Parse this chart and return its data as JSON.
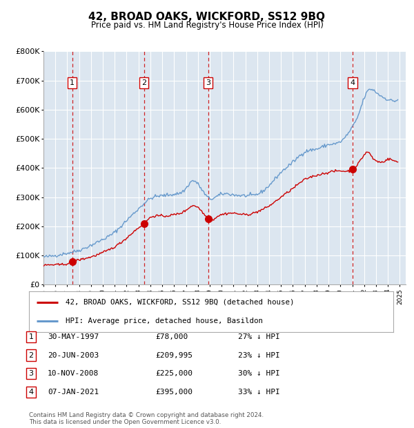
{
  "title": "42, BROAD OAKS, WICKFORD, SS12 9BQ",
  "subtitle": "Price paid vs. HM Land Registry's House Price Index (HPI)",
  "hpi_color": "#6699cc",
  "price_color": "#cc0000",
  "plot_bg": "#dce6f0",
  "grid_color": "#ffffff",
  "vline_color": "#cc0000",
  "sale_points": [
    {
      "date_num": 1997.42,
      "price": 78000,
      "label": "1"
    },
    {
      "date_num": 2003.47,
      "price": 209995,
      "label": "2"
    },
    {
      "date_num": 2008.86,
      "price": 225000,
      "label": "3"
    },
    {
      "date_num": 2021.02,
      "price": 395000,
      "label": "4"
    }
  ],
  "legend_entries": [
    "42, BROAD OAKS, WICKFORD, SS12 9BQ (detached house)",
    "HPI: Average price, detached house, Basildon"
  ],
  "table_rows": [
    {
      "num": "1",
      "date": "30-MAY-1997",
      "price": "£78,000",
      "hpi": "27% ↓ HPI"
    },
    {
      "num": "2",
      "date": "20-JUN-2003",
      "price": "£209,995",
      "hpi": "23% ↓ HPI"
    },
    {
      "num": "3",
      "date": "10-NOV-2008",
      "price": "£225,000",
      "hpi": "30% ↓ HPI"
    },
    {
      "num": "4",
      "date": "07-JAN-2021",
      "price": "£395,000",
      "hpi": "33% ↓ HPI"
    }
  ],
  "footnote1": "Contains HM Land Registry data © Crown copyright and database right 2024.",
  "footnote2": "This data is licensed under the Open Government Licence v3.0.",
  "ylim": [
    0,
    800000
  ],
  "yticks": [
    0,
    100000,
    200000,
    300000,
    400000,
    500000,
    600000,
    700000,
    800000
  ],
  "xlim_start": 1995.0,
  "xlim_end": 2025.5,
  "hpi_control": [
    [
      1995.0,
      95000
    ],
    [
      1996.0,
      100000
    ],
    [
      1997.0,
      108000
    ],
    [
      1998.0,
      118000
    ],
    [
      1999.0,
      135000
    ],
    [
      2000.0,
      155000
    ],
    [
      2001.0,
      180000
    ],
    [
      2002.0,
      220000
    ],
    [
      2003.0,
      260000
    ],
    [
      2004.0,
      295000
    ],
    [
      2005.0,
      305000
    ],
    [
      2006.0,
      310000
    ],
    [
      2007.0,
      330000
    ],
    [
      2007.5,
      355000
    ],
    [
      2008.0,
      345000
    ],
    [
      2009.0,
      295000
    ],
    [
      2009.5,
      300000
    ],
    [
      2010.0,
      310000
    ],
    [
      2011.0,
      308000
    ],
    [
      2012.0,
      305000
    ],
    [
      2013.0,
      310000
    ],
    [
      2014.0,
      340000
    ],
    [
      2015.0,
      385000
    ],
    [
      2016.0,
      420000
    ],
    [
      2017.0,
      455000
    ],
    [
      2018.0,
      465000
    ],
    [
      2019.0,
      480000
    ],
    [
      2020.0,
      490000
    ],
    [
      2021.0,
      540000
    ],
    [
      2021.5,
      580000
    ],
    [
      2022.0,
      640000
    ],
    [
      2022.5,
      670000
    ],
    [
      2023.0,
      660000
    ],
    [
      2023.5,
      645000
    ],
    [
      2024.0,
      635000
    ],
    [
      2024.5,
      630000
    ],
    [
      2024.9,
      635000
    ]
  ],
  "price_control": [
    [
      1995.0,
      65000
    ],
    [
      1996.0,
      68000
    ],
    [
      1997.0,
      72000
    ],
    [
      1997.42,
      78000
    ],
    [
      1998.0,
      85000
    ],
    [
      1999.0,
      95000
    ],
    [
      2000.0,
      110000
    ],
    [
      2001.0,
      130000
    ],
    [
      2002.0,
      160000
    ],
    [
      2003.0,
      195000
    ],
    [
      2003.47,
      209995
    ],
    [
      2004.0,
      230000
    ],
    [
      2005.0,
      235000
    ],
    [
      2006.0,
      240000
    ],
    [
      2007.0,
      255000
    ],
    [
      2007.5,
      270000
    ],
    [
      2008.0,
      265000
    ],
    [
      2008.86,
      225000
    ],
    [
      2009.0,
      220000
    ],
    [
      2009.5,
      230000
    ],
    [
      2010.0,
      240000
    ],
    [
      2011.0,
      245000
    ],
    [
      2012.0,
      240000
    ],
    [
      2013.0,
      250000
    ],
    [
      2014.0,
      270000
    ],
    [
      2015.0,
      300000
    ],
    [
      2016.0,
      330000
    ],
    [
      2017.0,
      360000
    ],
    [
      2018.0,
      375000
    ],
    [
      2019.0,
      385000
    ],
    [
      2020.0,
      390000
    ],
    [
      2021.02,
      395000
    ],
    [
      2021.5,
      415000
    ],
    [
      2022.0,
      445000
    ],
    [
      2022.3,
      455000
    ],
    [
      2022.8,
      430000
    ],
    [
      2023.0,
      425000
    ],
    [
      2023.5,
      420000
    ],
    [
      2024.0,
      430000
    ],
    [
      2024.5,
      425000
    ],
    [
      2024.9,
      420000
    ]
  ]
}
